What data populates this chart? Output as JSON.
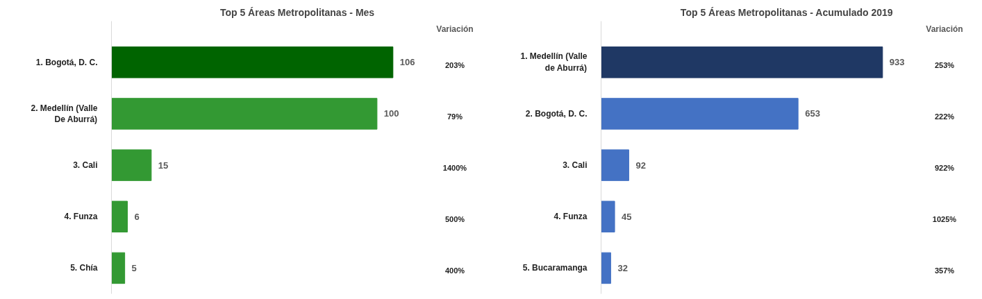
{
  "chart_data": [
    {
      "type": "bar",
      "orientation": "horizontal",
      "title": "Top 5 Áreas Metropolitanas - Mes",
      "categories": [
        "1. Bogotá, D. C.",
        "2. Medellín (Valle De Aburrá)",
        "3. Cali",
        "4. Funza",
        "5. Chía"
      ],
      "values": [
        106,
        100,
        15,
        6,
        5
      ],
      "colors": [
        "#006400",
        "#339933",
        "#339933",
        "#339933",
        "#339933"
      ],
      "data_labels": true,
      "annotations": [
        "Variación",
        "203%",
        "79%",
        "1400%",
        "500%",
        "400%"
      ]
    },
    {
      "type": "bar",
      "orientation": "horizontal",
      "title": "Top 5 Áreas Metropolitanas - Acumulado 2019",
      "categories": [
        "1. Medellín (Valle de Aburrá)",
        "2. Bogotá, D. C.",
        "3. Cali",
        "4. Funza",
        "5. Bucaramanga"
      ],
      "values": [
        933,
        653,
        92,
        45,
        32
      ],
      "colors": [
        "#1f3864",
        "#4472c4",
        "#4472c4",
        "#4472c4",
        "#4472c4"
      ],
      "data_labels": true,
      "annotations": [
        "Variación",
        "253%",
        "222%",
        "922%",
        "1025%",
        "357%"
      ]
    }
  ]
}
